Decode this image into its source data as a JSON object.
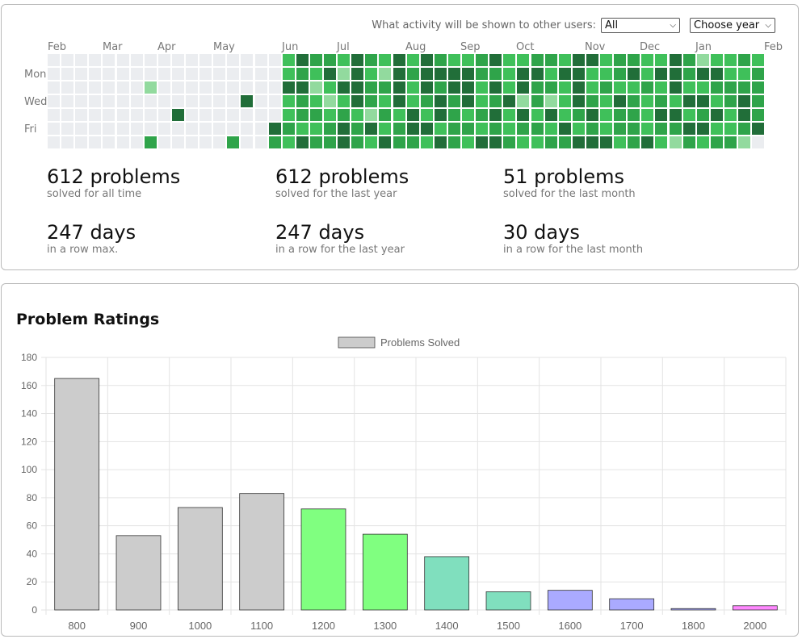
{
  "activity": {
    "filter_label": "What activity will be shown to other users:",
    "filter_value": "All",
    "year_value": "Choose year",
    "months": [
      "Feb",
      "Mar",
      "Apr",
      "May",
      "Jun",
      "Jul",
      "Aug",
      "Sep",
      "Oct",
      "Nov",
      "Dec",
      "Jan",
      "Feb"
    ],
    "days": [
      "Mon",
      "Wed",
      "Fri"
    ],
    "levels": [
      "#ebedf0",
      "#92da9e",
      "#3fc05a",
      "#2fa44a",
      "#216e39"
    ],
    "grid": [
      [
        0,
        0,
        0,
        0,
        0,
        0,
        0,
        0,
        0,
        0,
        0,
        0,
        0,
        0,
        0,
        0,
        0,
        2,
        4,
        3,
        3,
        2,
        4,
        3,
        2,
        4,
        2,
        4,
        3,
        2,
        2,
        3,
        4,
        2,
        2,
        3,
        3,
        2,
        4,
        4,
        2,
        3,
        3,
        2,
        2,
        4,
        3,
        1,
        2,
        2,
        3,
        2
      ],
      [
        0,
        0,
        0,
        0,
        0,
        0,
        0,
        0,
        0,
        0,
        0,
        0,
        0,
        0,
        0,
        0,
        0,
        2,
        3,
        2,
        4,
        1,
        4,
        2,
        1,
        4,
        3,
        4,
        4,
        4,
        4,
        3,
        3,
        2,
        4,
        4,
        2,
        4,
        4,
        2,
        2,
        3,
        4,
        2,
        4,
        4,
        3,
        4,
        4,
        2,
        2,
        3
      ],
      [
        0,
        0,
        0,
        0,
        0,
        0,
        0,
        1,
        0,
        0,
        0,
        0,
        0,
        0,
        0,
        0,
        0,
        4,
        4,
        1,
        2,
        4,
        4,
        3,
        3,
        4,
        2,
        4,
        3,
        4,
        4,
        2,
        4,
        2,
        4,
        3,
        3,
        2,
        4,
        2,
        3,
        2,
        2,
        3,
        2,
        4,
        2,
        2,
        3,
        3,
        3,
        3
      ],
      [
        0,
        0,
        0,
        0,
        0,
        0,
        0,
        0,
        0,
        0,
        0,
        0,
        0,
        0,
        4,
        0,
        0,
        2,
        3,
        2,
        1,
        2,
        4,
        3,
        2,
        4,
        2,
        3,
        4,
        3,
        4,
        2,
        3,
        4,
        1,
        3,
        1,
        2,
        4,
        3,
        2,
        4,
        3,
        2,
        3,
        2,
        4,
        4,
        2,
        3,
        4,
        3
      ],
      [
        0,
        0,
        0,
        0,
        0,
        0,
        0,
        0,
        0,
        4,
        0,
        0,
        0,
        0,
        0,
        0,
        0,
        2,
        3,
        3,
        2,
        3,
        2,
        1,
        3,
        2,
        4,
        2,
        4,
        3,
        2,
        3,
        4,
        2,
        4,
        2,
        4,
        2,
        3,
        4,
        2,
        3,
        3,
        2,
        4,
        4,
        2,
        3,
        4,
        2,
        4,
        3
      ],
      [
        0,
        0,
        0,
        0,
        0,
        0,
        0,
        0,
        0,
        0,
        0,
        0,
        0,
        0,
        0,
        0,
        4,
        3,
        2,
        2,
        3,
        4,
        3,
        4,
        2,
        3,
        4,
        4,
        2,
        3,
        3,
        2,
        3,
        2,
        3,
        3,
        2,
        4,
        2,
        3,
        2,
        3,
        3,
        2,
        3,
        3,
        4,
        4,
        2,
        2,
        3,
        4
      ],
      [
        0,
        0,
        0,
        0,
        0,
        0,
        0,
        3,
        0,
        0,
        0,
        0,
        0,
        3,
        0,
        0,
        3,
        2,
        4,
        3,
        3,
        4,
        3,
        2,
        4,
        3,
        3,
        2,
        4,
        3,
        2,
        4,
        4,
        3,
        2,
        2,
        3,
        3,
        4,
        4,
        4,
        2,
        3,
        4,
        2,
        1,
        3,
        2,
        3,
        3,
        1,
        0
      ]
    ]
  },
  "stats": [
    {
      "value": "612 problems",
      "caption": "solved for all time"
    },
    {
      "value": "612 problems",
      "caption": "solved for the last year"
    },
    {
      "value": "51 problems",
      "caption": "solved for the last month"
    },
    {
      "value": "247 days",
      "caption": "in a row max."
    },
    {
      "value": "247 days",
      "caption": "in a row for the last year"
    },
    {
      "value": "30 days",
      "caption": "in a row for the last month"
    }
  ],
  "ratings": {
    "title": "Problem Ratings"
  },
  "chart_data": {
    "type": "bar",
    "title": "Problem Ratings",
    "legend": "Problems Solved",
    "legend_position": "top",
    "categories": [
      "800",
      "900",
      "1000",
      "1100",
      "1200",
      "1300",
      "1400",
      "1500",
      "1600",
      "1700",
      "1800",
      "2000"
    ],
    "values": [
      165,
      53,
      73,
      83,
      72,
      54,
      38,
      13,
      14,
      8,
      1,
      3
    ],
    "colors": [
      "#cccccc",
      "#cccccc",
      "#cccccc",
      "#cccccc",
      "#80ff80",
      "#80ff80",
      "#80dfbe",
      "#80dfbe",
      "#aaaaff",
      "#aaaaff",
      "#aaaaff",
      "#ff88ff"
    ],
    "ylim": [
      0,
      180
    ],
    "yticks": [
      0,
      20,
      40,
      60,
      80,
      100,
      120,
      140,
      160,
      180
    ],
    "grid": true
  }
}
